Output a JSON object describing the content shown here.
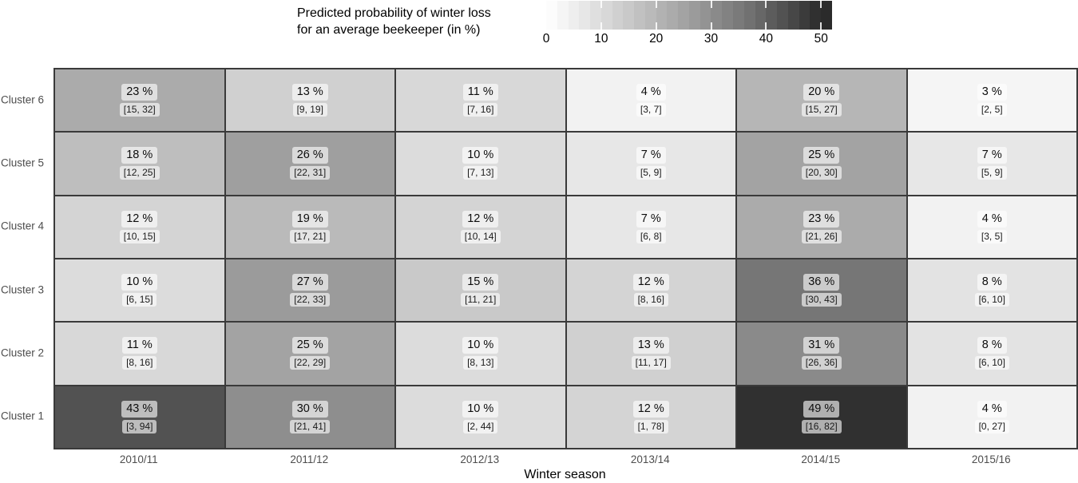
{
  "legend": {
    "title_line1": "Predicted probability of winter loss",
    "title_line2": "for an average beekeeper (in %)",
    "tick_values": [
      0,
      10,
      20,
      30,
      40,
      50
    ],
    "scale_min": 0,
    "scale_max": 52,
    "low_color": "#ffffff",
    "high_color": "#282828"
  },
  "colors": {
    "tile_border": "#3a3a3a",
    "axis_text": "#4d4d4d",
    "label_background": "rgba(255,255,255,0.62)",
    "scale_anchors": [
      [
        0,
        255
      ],
      [
        4,
        242
      ],
      [
        23,
        171
      ],
      [
        36,
        118
      ],
      [
        43,
        82
      ],
      [
        49,
        48
      ],
      [
        52,
        40
      ]
    ]
  },
  "chart_data": {
    "type": "heatmap",
    "title": "Predicted probability of winter loss for an average beekeeper (in %)",
    "xlabel": "Winter season",
    "ylabel": "",
    "legend_position": "top",
    "grid": false,
    "value_range": [
      0,
      52
    ],
    "x": [
      "2010/11",
      "2011/12",
      "2012/13",
      "2013/14",
      "2014/15",
      "2015/16"
    ],
    "rows": [
      {
        "label": "Cluster 6",
        "values": [
          23,
          13,
          11,
          4,
          20,
          3
        ],
        "ci": [
          [
            15,
            32
          ],
          [
            9,
            19
          ],
          [
            7,
            16
          ],
          [
            3,
            7
          ],
          [
            15,
            27
          ],
          [
            2,
            5
          ]
        ]
      },
      {
        "label": "Cluster 5",
        "values": [
          18,
          26,
          10,
          7,
          25,
          7
        ],
        "ci": [
          [
            12,
            25
          ],
          [
            22,
            31
          ],
          [
            7,
            13
          ],
          [
            5,
            9
          ],
          [
            20,
            30
          ],
          [
            5,
            9
          ]
        ]
      },
      {
        "label": "Cluster 4",
        "values": [
          12,
          19,
          12,
          7,
          23,
          4
        ],
        "ci": [
          [
            10,
            15
          ],
          [
            17,
            21
          ],
          [
            10,
            14
          ],
          [
            6,
            8
          ],
          [
            21,
            26
          ],
          [
            3,
            5
          ]
        ]
      },
      {
        "label": "Cluster 3",
        "values": [
          10,
          27,
          15,
          12,
          36,
          8
        ],
        "ci": [
          [
            6,
            15
          ],
          [
            22,
            33
          ],
          [
            11,
            21
          ],
          [
            8,
            16
          ],
          [
            30,
            43
          ],
          [
            6,
            10
          ]
        ]
      },
      {
        "label": "Cluster 2",
        "values": [
          11,
          25,
          10,
          13,
          31,
          8
        ],
        "ci": [
          [
            8,
            16
          ],
          [
            22,
            29
          ],
          [
            8,
            13
          ],
          [
            11,
            17
          ],
          [
            26,
            36
          ],
          [
            6,
            10
          ]
        ]
      },
      {
        "label": "Cluster 1",
        "values": [
          43,
          30,
          10,
          12,
          49,
          4
        ],
        "ci": [
          [
            3,
            94
          ],
          [
            21,
            41
          ],
          [
            2,
            44
          ],
          [
            1,
            78
          ],
          [
            16,
            82
          ],
          [
            0,
            27
          ]
        ]
      }
    ]
  }
}
